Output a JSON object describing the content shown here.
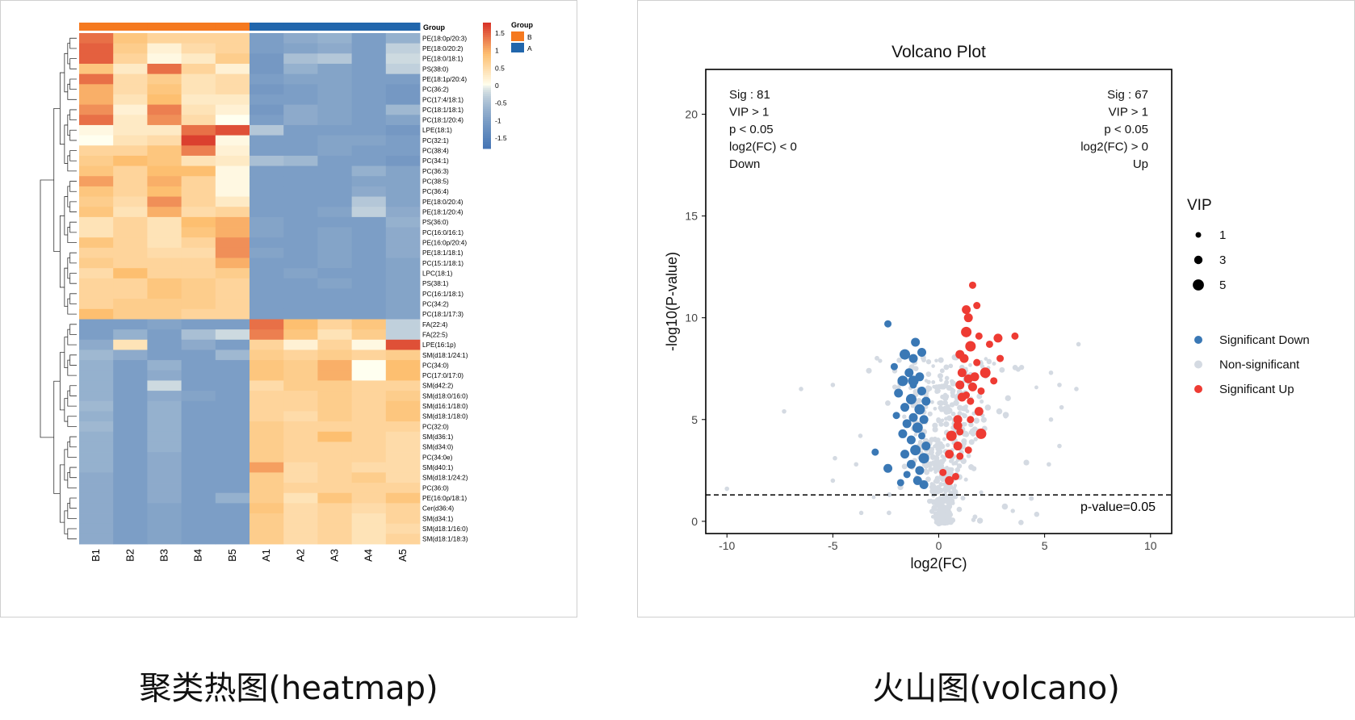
{
  "captions": {
    "heatmap": "聚类热图(heatmap)",
    "volcano": "火山图(volcano)"
  },
  "chart_data": [
    {
      "type": "heatmap",
      "title": "",
      "columns": [
        "B1",
        "B2",
        "B3",
        "B4",
        "B5",
        "A1",
        "A2",
        "A3",
        "A4",
        "A5"
      ],
      "column_groups": [
        "B",
        "B",
        "B",
        "B",
        "B",
        "A",
        "A",
        "A",
        "A",
        "A"
      ],
      "group_legend": {
        "title": "Group",
        "entries": [
          {
            "name": "B",
            "color": "#F5791F"
          },
          {
            "name": "A",
            "color": "#2166AC"
          }
        ]
      },
      "color_scale": {
        "ticks": [
          1.5,
          1,
          0.5,
          0,
          -0.5,
          -1,
          -1.5
        ],
        "range": [
          -1.8,
          1.8
        ],
        "low_color": "#4575B4",
        "mid_color": "#FFFFF0",
        "high_color": "#D73027"
      },
      "rows": [
        "PE(18:0p/20:3)",
        "PE(18:0/20:2)",
        "PE(18:0/18:1)",
        "PS(38:0)",
        "PE(18:1p/20:4)",
        "PC(36:2)",
        "PC(17:4/18:1)",
        "PC(18:1/18:1)",
        "PC(18:1/20:4)",
        "LPE(18:1)",
        "PC(32:1)",
        "PC(38:4)",
        "PC(34:1)",
        "PC(36:3)",
        "PC(38:5)",
        "PC(36:4)",
        "PE(18:0/20:4)",
        "PE(18:1/20:4)",
        "PS(36:0)",
        "PC(16:0/16:1)",
        "PE(16:0p/20:4)",
        "PE(18:1/18:1)",
        "PC(15:1/18:1)",
        "LPC(18:1)",
        "PS(38:1)",
        "PC(16:1/18:1)",
        "PC(34:2)",
        "PC(18:1/17:3)",
        "FA(22:4)",
        "FA(22:5)",
        "LPE(16:1p)",
        "SM(d18:1/24:1)",
        "PC(34:0)",
        "PC(17:0/17:0)",
        "SM(d42:2)",
        "SM(d18:0/16:0)",
        "SM(d16:1/18:0)",
        "SM(d18:1/18:0)",
        "PC(32:0)",
        "SM(d36:1)",
        "SM(d34:0)",
        "PC(34:0e)",
        "SM(d40:1)",
        "SM(d18:1/24:2)",
        "PC(36:0)",
        "PE(16:0p/18:1)",
        "Cer(d36:4)",
        "SM(d34:1)",
        "SM(d18:1/16:0)",
        "SM(d18:1/18:3)"
      ],
      "values": [
        [
          1.4,
          0.8,
          0.6,
          0.6,
          0.6,
          -1.0,
          -0.8,
          -0.7,
          -1.0,
          -0.7
        ],
        [
          1.5,
          0.7,
          0.2,
          0.5,
          0.6,
          -1.0,
          -0.9,
          -0.8,
          -1.0,
          -0.3
        ],
        [
          1.5,
          0.6,
          0.1,
          0.3,
          0.7,
          -1.1,
          -0.5,
          -0.4,
          -1.0,
          -0.2
        ],
        [
          0.8,
          0.3,
          1.4,
          0.6,
          0.2,
          -1.1,
          -0.7,
          -0.9,
          -1.0,
          -0.3
        ],
        [
          1.4,
          0.5,
          0.7,
          0.4,
          0.5,
          -1.0,
          -0.9,
          -0.9,
          -1.0,
          -1.0
        ],
        [
          1.0,
          0.5,
          0.8,
          0.4,
          0.5,
          -1.1,
          -1.0,
          -0.9,
          -1.0,
          -1.1
        ],
        [
          1.0,
          0.4,
          0.9,
          0.3,
          0.3,
          -1.0,
          -1.0,
          -0.9,
          -1.0,
          -1.1
        ],
        [
          1.2,
          0.2,
          1.3,
          0.4,
          0.2,
          -1.1,
          -0.8,
          -0.9,
          -1.0,
          -0.6
        ],
        [
          1.4,
          0.3,
          1.2,
          0.5,
          0.0,
          -1.0,
          -0.8,
          -0.9,
          -1.0,
          -0.9
        ],
        [
          0.1,
          0.3,
          0.3,
          1.4,
          1.6,
          -0.4,
          -1.0,
          -1.0,
          -1.0,
          -1.1
        ],
        [
          0.0,
          0.4,
          0.5,
          1.7,
          0.1,
          -1.0,
          -1.0,
          -0.9,
          -0.9,
          -1.0
        ],
        [
          0.6,
          0.6,
          0.8,
          1.3,
          0.2,
          -1.0,
          -1.0,
          -0.9,
          -1.0,
          -1.0
        ],
        [
          0.7,
          0.9,
          0.8,
          0.4,
          0.3,
          -0.5,
          -0.6,
          -1.0,
          -1.0,
          -1.1
        ],
        [
          0.8,
          0.6,
          0.9,
          0.9,
          0.1,
          -1.0,
          -1.0,
          -1.0,
          -0.7,
          -0.9
        ],
        [
          1.1,
          0.6,
          1.0,
          0.6,
          0.1,
          -1.0,
          -1.0,
          -1.0,
          -0.9,
          -0.9
        ],
        [
          0.8,
          0.6,
          0.9,
          0.6,
          0.1,
          -1.0,
          -1.0,
          -1.0,
          -0.8,
          -0.9
        ],
        [
          0.7,
          0.5,
          1.2,
          0.6,
          0.3,
          -1.0,
          -1.0,
          -1.0,
          -0.4,
          -0.9
        ],
        [
          0.8,
          0.4,
          1.0,
          0.5,
          0.6,
          -1.0,
          -1.0,
          -0.9,
          -0.3,
          -0.8
        ],
        [
          0.4,
          0.6,
          0.4,
          0.9,
          1.0,
          -0.9,
          -1.0,
          -1.0,
          -1.0,
          -0.7
        ],
        [
          0.4,
          0.6,
          0.4,
          0.8,
          1.0,
          -0.9,
          -1.0,
          -0.9,
          -1.0,
          -0.8
        ],
        [
          0.8,
          0.6,
          0.4,
          0.6,
          1.2,
          -1.0,
          -1.0,
          -0.9,
          -1.0,
          -0.8
        ],
        [
          0.6,
          0.6,
          0.5,
          0.5,
          1.2,
          -0.9,
          -1.0,
          -0.9,
          -1.0,
          -0.8
        ],
        [
          0.7,
          0.6,
          0.6,
          0.6,
          1.0,
          -1.0,
          -1.0,
          -0.9,
          -1.0,
          -0.9
        ],
        [
          0.5,
          0.9,
          0.6,
          0.6,
          0.7,
          -1.0,
          -0.9,
          -1.0,
          -1.0,
          -0.9
        ],
        [
          0.6,
          0.6,
          0.8,
          0.7,
          0.6,
          -1.0,
          -1.0,
          -0.9,
          -1.0,
          -0.9
        ],
        [
          0.6,
          0.6,
          0.8,
          0.7,
          0.6,
          -1.0,
          -1.0,
          -1.0,
          -1.0,
          -0.9
        ],
        [
          0.6,
          0.7,
          0.7,
          0.7,
          0.6,
          -1.0,
          -1.0,
          -1.0,
          -1.0,
          -0.9
        ],
        [
          0.9,
          0.7,
          0.7,
          0.6,
          0.6,
          -1.0,
          -1.0,
          -1.0,
          -1.0,
          -0.9
        ],
        [
          -1.0,
          -1.0,
          -0.9,
          -1.0,
          -1.0,
          1.4,
          0.9,
          0.6,
          0.8,
          -0.3
        ],
        [
          -1.0,
          -0.7,
          -1.0,
          -0.5,
          -0.2,
          1.3,
          0.8,
          0.4,
          0.7,
          -0.3
        ],
        [
          -0.8,
          0.4,
          -1.0,
          -0.8,
          -1.0,
          0.6,
          0.2,
          0.6,
          0.1,
          1.6
        ],
        [
          -0.6,
          -0.8,
          -1.0,
          -1.0,
          -0.6,
          0.7,
          0.6,
          0.7,
          0.6,
          0.7
        ],
        [
          -0.7,
          -1.0,
          -0.7,
          -1.0,
          -1.0,
          0.8,
          0.7,
          1.0,
          0.0,
          0.9
        ],
        [
          -0.7,
          -1.0,
          -0.8,
          -1.0,
          -1.0,
          0.8,
          0.7,
          1.0,
          0.0,
          0.9
        ],
        [
          -0.7,
          -1.0,
          -0.2,
          -1.0,
          -1.0,
          0.5,
          0.7,
          0.7,
          0.6,
          0.6
        ],
        [
          -0.7,
          -1.0,
          -0.8,
          -0.9,
          -1.0,
          0.6,
          0.6,
          0.7,
          0.6,
          0.7
        ],
        [
          -0.6,
          -1.0,
          -0.7,
          -1.0,
          -1.0,
          0.6,
          0.6,
          0.7,
          0.6,
          0.8
        ],
        [
          -0.7,
          -1.0,
          -0.7,
          -1.0,
          -1.0,
          0.6,
          0.5,
          0.7,
          0.6,
          0.8
        ],
        [
          -0.6,
          -1.0,
          -0.7,
          -1.0,
          -1.0,
          0.7,
          0.6,
          0.6,
          0.6,
          0.6
        ],
        [
          -0.7,
          -1.0,
          -0.7,
          -1.0,
          -1.0,
          0.7,
          0.6,
          0.9,
          0.6,
          0.5
        ],
        [
          -0.7,
          -1.0,
          -0.7,
          -1.0,
          -1.0,
          0.7,
          0.6,
          0.6,
          0.6,
          0.5
        ],
        [
          -0.7,
          -1.0,
          -0.8,
          -1.0,
          -1.0,
          0.7,
          0.6,
          0.6,
          0.6,
          0.5
        ],
        [
          -0.7,
          -1.0,
          -0.8,
          -1.0,
          -1.0,
          1.1,
          0.5,
          0.6,
          0.5,
          0.5
        ],
        [
          -0.8,
          -1.0,
          -0.8,
          -1.0,
          -1.0,
          0.7,
          0.5,
          0.6,
          0.7,
          0.5
        ],
        [
          -0.8,
          -1.0,
          -0.8,
          -1.0,
          -1.0,
          0.7,
          0.6,
          0.6,
          0.6,
          0.6
        ],
        [
          -0.8,
          -1.0,
          -0.8,
          -1.0,
          -0.7,
          0.7,
          0.4,
          0.8,
          0.6,
          0.8
        ],
        [
          -0.8,
          -1.0,
          -0.9,
          -1.0,
          -1.0,
          0.8,
          0.5,
          0.6,
          0.5,
          0.6
        ],
        [
          -0.8,
          -1.0,
          -0.9,
          -1.0,
          -1.0,
          0.7,
          0.5,
          0.6,
          0.4,
          0.6
        ],
        [
          -0.8,
          -1.0,
          -0.9,
          -1.0,
          -1.0,
          0.7,
          0.5,
          0.6,
          0.4,
          0.5
        ],
        [
          -0.8,
          -1.0,
          -0.9,
          -1.0,
          -1.0,
          0.7,
          0.5,
          0.6,
          0.4,
          0.6
        ]
      ]
    },
    {
      "type": "scatter",
      "title": "Volcano Plot",
      "xlabel": "log2(FC)",
      "ylabel": "-log10(P-value)",
      "xlim": [
        -11,
        11
      ],
      "ylim": [
        -0.6,
        22.2
      ],
      "xticks": [
        -10,
        -5,
        0,
        5,
        10
      ],
      "yticks": [
        0,
        5,
        10,
        15,
        20
      ],
      "threshold": {
        "y": 1.3,
        "label": "p-value=0.05"
      },
      "annotations": {
        "left": [
          "Sig : 81",
          "VIP > 1",
          "p < 0.05",
          "log2(FC) < 0",
          "Down"
        ],
        "right": [
          "Sig : 67",
          "VIP > 1",
          "p < 0.05",
          "log2(FC) > 0",
          "Up"
        ]
      },
      "size_legend": {
        "title": "VIP",
        "entries": [
          "1",
          "3",
          "5"
        ]
      },
      "legend": [
        {
          "name": "Significant Down",
          "color": "#3A78B5"
        },
        {
          "name": "Non-significant",
          "color": "#D4DAE2"
        },
        {
          "name": "Significant Up",
          "color": "#EE3B33"
        }
      ],
      "series": [
        {
          "name": "Significant Down",
          "points": [
            [
              -2.4,
              9.7,
              2
            ],
            [
              -1.1,
              8.8,
              3
            ],
            [
              -1.6,
              8.2,
              4
            ],
            [
              -0.8,
              8.3,
              3
            ],
            [
              -1.2,
              8.0,
              3
            ],
            [
              -2.1,
              7.6,
              2
            ],
            [
              -1.4,
              7.3,
              3
            ],
            [
              -0.9,
              7.1,
              3
            ],
            [
              -1.7,
              6.9,
              4
            ],
            [
              -1.2,
              6.7,
              2
            ],
            [
              -0.8,
              6.4,
              3
            ],
            [
              -1.9,
              6.3,
              3
            ],
            [
              -1.3,
              6.0,
              4
            ],
            [
              -0.6,
              5.9,
              3
            ],
            [
              -1.6,
              5.6,
              3
            ],
            [
              -0.9,
              5.5,
              4
            ],
            [
              -2.0,
              5.2,
              2
            ],
            [
              -1.2,
              5.1,
              3
            ],
            [
              -0.7,
              5.0,
              3
            ],
            [
              -1.5,
              4.8,
              3
            ],
            [
              -1.0,
              4.6,
              4
            ],
            [
              -1.7,
              4.3,
              3
            ],
            [
              -0.8,
              4.2,
              2
            ],
            [
              -1.3,
              4.0,
              3
            ],
            [
              -0.6,
              3.7,
              3
            ],
            [
              -1.1,
              3.5,
              4
            ],
            [
              -1.6,
              3.3,
              3
            ],
            [
              -0.7,
              3.1,
              4
            ],
            [
              -1.3,
              2.8,
              3
            ],
            [
              -2.4,
              2.6,
              3
            ],
            [
              -0.9,
              2.5,
              3
            ],
            [
              -1.5,
              2.3,
              2
            ],
            [
              -1.0,
              2.0,
              3
            ],
            [
              -1.8,
              1.9,
              2
            ],
            [
              -0.7,
              1.8,
              3
            ],
            [
              -3.0,
              3.4,
              2
            ],
            [
              -1.2,
              6.9,
              4
            ]
          ]
        },
        {
          "name": "Significant Up",
          "points": [
            [
              1.6,
              11.6,
              2
            ],
            [
              1.3,
              10.4,
              3
            ],
            [
              1.8,
              10.6,
              2
            ],
            [
              1.4,
              10.0,
              3
            ],
            [
              1.3,
              9.3,
              4
            ],
            [
              1.9,
              9.1,
              2
            ],
            [
              2.8,
              9.0,
              3
            ],
            [
              3.6,
              9.1,
              2
            ],
            [
              1.5,
              8.6,
              4
            ],
            [
              2.4,
              8.7,
              2
            ],
            [
              1.0,
              8.2,
              3
            ],
            [
              1.8,
              7.8,
              2
            ],
            [
              2.9,
              8.0,
              2
            ],
            [
              1.1,
              7.3,
              3
            ],
            [
              1.4,
              7.0,
              3
            ],
            [
              2.2,
              7.3,
              4
            ],
            [
              2.6,
              6.9,
              2
            ],
            [
              1.0,
              6.7,
              3
            ],
            [
              1.6,
              6.6,
              3
            ],
            [
              2.0,
              6.4,
              2
            ],
            [
              1.1,
              6.1,
              3
            ],
            [
              1.5,
              5.9,
              2
            ],
            [
              1.9,
              5.4,
              3
            ],
            [
              0.9,
              5.0,
              3
            ],
            [
              1.5,
              5.0,
              2
            ],
            [
              0.6,
              4.2,
              4
            ],
            [
              1.0,
              4.4,
              2
            ],
            [
              2.0,
              4.3,
              4
            ],
            [
              0.9,
              3.7,
              3
            ],
            [
              1.4,
              3.5,
              2
            ],
            [
              0.5,
              3.3,
              3
            ],
            [
              1.0,
              3.2,
              2
            ],
            [
              0.8,
              2.2,
              2
            ],
            [
              0.5,
              2.0,
              3
            ],
            [
              0.2,
              2.4,
              2
            ],
            [
              0.9,
              4.7,
              3
            ],
            [
              1.3,
              6.2,
              2
            ],
            [
              1.7,
              7.1,
              3
            ],
            [
              1.2,
              8.0,
              3
            ]
          ]
        }
      ]
    }
  ]
}
